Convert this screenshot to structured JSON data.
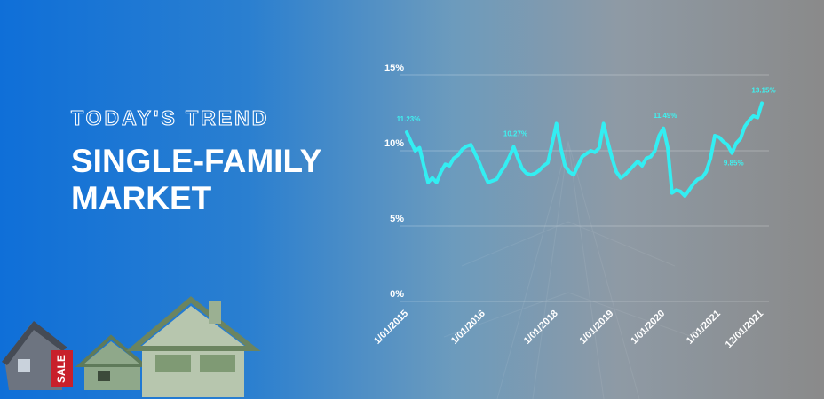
{
  "header": {
    "subtitle": "TODAY'S TREND",
    "title_lines": [
      "SINGLE-FAMILY",
      "MARKET"
    ]
  },
  "chart_data": {
    "type": "line",
    "categories": [
      "1/01/2015",
      null,
      null,
      null,
      null,
      null,
      null,
      null,
      null,
      null,
      null,
      null,
      null,
      null,
      null,
      null,
      null,
      null,
      "1/01/2016",
      null,
      null,
      null,
      null,
      null,
      null,
      null,
      null,
      null,
      null,
      null,
      null,
      null,
      null,
      null,
      null,
      "1/01/2018",
      null,
      null,
      null,
      null,
      null,
      null,
      null,
      null,
      null,
      null,
      null,
      null,
      "1/01/2019",
      null,
      null,
      null,
      null,
      null,
      null,
      null,
      null,
      null,
      null,
      null,
      "1/01/2020",
      null,
      null,
      null,
      null,
      null,
      null,
      null,
      null,
      null,
      null,
      null,
      null,
      "1/01/2021",
      null,
      null,
      null,
      null,
      null,
      null,
      null,
      null,
      null,
      "12/01/2021"
    ],
    "series": [
      {
        "name": null,
        "color": "#33eef2",
        "values": [
          11.23,
          10.6,
          10.0,
          10.2,
          9.0,
          7.9,
          8.2,
          7.9,
          8.6,
          9.1,
          9.0,
          9.5,
          9.7,
          10.1,
          10.3,
          10.4,
          9.8,
          9.2,
          8.5,
          7.9,
          8.0,
          8.1,
          8.6,
          9.0,
          9.6,
          10.27,
          9.5,
          8.8,
          8.5,
          8.4,
          8.5,
          8.7,
          9.0,
          9.2,
          10.5,
          11.8,
          10.2,
          9.0,
          8.6,
          8.4,
          9.0,
          9.6,
          9.8,
          10.0,
          9.9,
          10.2,
          11.8,
          10.6,
          9.5,
          8.6,
          8.2,
          8.4,
          8.7,
          9.0,
          9.3,
          9.0,
          9.5,
          9.6,
          10.0,
          11.0,
          11.49,
          10.2,
          7.2,
          7.4,
          7.3,
          7.0,
          7.4,
          7.8,
          8.1,
          8.2,
          8.6,
          9.5,
          11.0,
          10.9,
          10.6,
          10.4,
          9.85,
          10.5,
          10.8,
          11.6,
          12.0,
          12.3,
          12.2,
          13.15
        ],
        "value_labels": [
          "11.23%",
          null,
          null,
          null,
          null,
          null,
          null,
          null,
          null,
          null,
          null,
          null,
          null,
          null,
          null,
          null,
          null,
          null,
          null,
          null,
          null,
          null,
          null,
          null,
          null,
          "10.27%",
          null,
          null,
          null,
          null,
          null,
          null,
          null,
          null,
          null,
          null,
          null,
          null,
          null,
          null,
          null,
          null,
          null,
          null,
          null,
          null,
          null,
          null,
          null,
          null,
          null,
          null,
          null,
          null,
          null,
          null,
          null,
          null,
          null,
          null,
          "11.49%",
          null,
          null,
          null,
          null,
          null,
          null,
          null,
          null,
          null,
          null,
          null,
          null,
          null,
          null,
          null,
          "9.85%",
          null,
          null,
          null,
          null,
          null,
          null,
          "13.15%"
        ]
      }
    ],
    "ylim": [
      0,
      15
    ],
    "yticks": [
      {
        "value": 0,
        "label": "0%"
      },
      {
        "value": 5,
        "label": "5%"
      },
      {
        "value": 10,
        "label": "10%"
      },
      {
        "value": 15,
        "label": "15%"
      }
    ],
    "grid": true
  }
}
